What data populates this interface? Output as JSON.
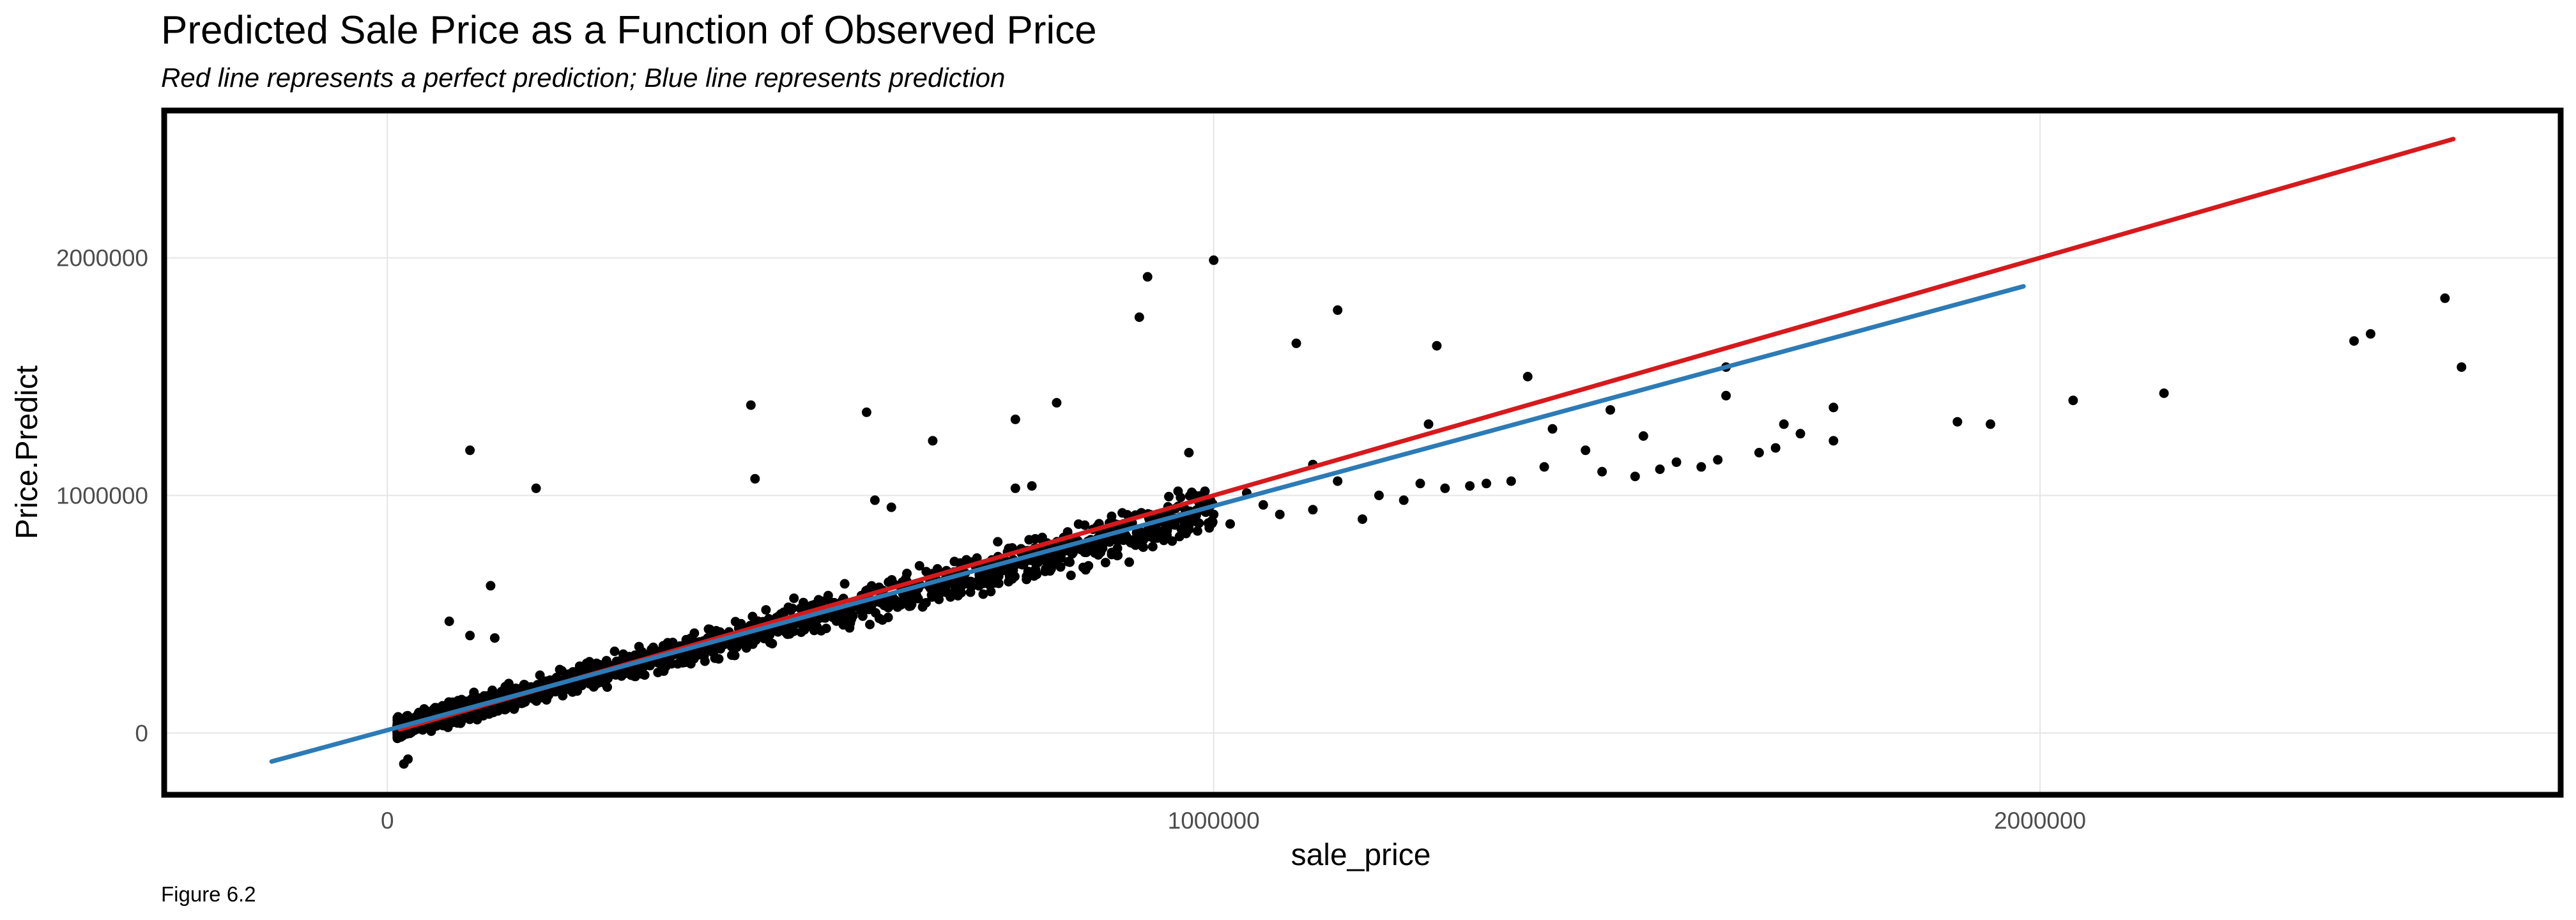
{
  "title": "Predicted Sale Price as a Function of Observed Price",
  "subtitle": "Red line represents a perfect prediction; Blue line represents prediction",
  "caption": "Figure 6.2",
  "colors": {
    "points": "#000000",
    "perfect_line": "#d7191c",
    "prediction_line": "#2c7bb6",
    "grid": "#e5e5e5",
    "panel_border": "#000000"
  },
  "chart_data": {
    "type": "scatter",
    "xlabel": "sale_price",
    "ylabel": "Price.Predict",
    "xlim": [
      -270000,
      2630000
    ],
    "ylim": [
      -260000,
      2620000
    ],
    "x_ticks": [
      0,
      1000000,
      2000000
    ],
    "x_tick_labels": [
      "0",
      "1000000",
      "2000000"
    ],
    "y_ticks": [
      0,
      1000000,
      2000000
    ],
    "y_tick_labels": [
      "0",
      "1000000",
      "2000000"
    ],
    "grid": true,
    "lines": [
      {
        "role": "perfect prediction",
        "color": "red",
        "x": [
          15000,
          2500000
        ],
        "y": [
          15000,
          2500000
        ]
      },
      {
        "role": "prediction",
        "color": "blue",
        "x": [
          -140000,
          1980000
        ],
        "y": [
          -120000,
          1880000
        ]
      }
    ],
    "band_points": {
      "x_range": [
        12000,
        1000000
      ],
      "y_model": "y ≈ 0.93·x + 10000 (dense cluster of several thousand observations)",
      "count": 1800
    },
    "scatter_points": [
      [
        100000,
        1190000
      ],
      [
        180000,
        1030000
      ],
      [
        125000,
        620000
      ],
      [
        75000,
        470000
      ],
      [
        100000,
        410000
      ],
      [
        130000,
        400000
      ],
      [
        20000,
        -130000
      ],
      [
        25000,
        -110000
      ],
      [
        440000,
        1380000
      ],
      [
        445000,
        1070000
      ],
      [
        580000,
        1350000
      ],
      [
        660000,
        1230000
      ],
      [
        760000,
        1320000
      ],
      [
        810000,
        1390000
      ],
      [
        780000,
        1040000
      ],
      [
        760000,
        1030000
      ],
      [
        920000,
        1920000
      ],
      [
        910000,
        1750000
      ],
      [
        1000000,
        1990000
      ],
      [
        970000,
        1180000
      ],
      [
        590000,
        980000
      ],
      [
        610000,
        950000
      ],
      [
        1100000,
        1640000
      ],
      [
        1150000,
        1780000
      ],
      [
        1270000,
        1630000
      ],
      [
        1380000,
        1500000
      ],
      [
        1120000,
        1130000
      ],
      [
        1150000,
        1060000
      ],
      [
        1060000,
        960000
      ],
      [
        1040000,
        1010000
      ],
      [
        1080000,
        920000
      ],
      [
        1120000,
        940000
      ],
      [
        1180000,
        900000
      ],
      [
        1200000,
        1000000
      ],
      [
        1250000,
        1050000
      ],
      [
        1260000,
        1300000
      ],
      [
        1310000,
        1040000
      ],
      [
        1330000,
        1050000
      ],
      [
        1360000,
        1060000
      ],
      [
        1400000,
        1120000
      ],
      [
        1410000,
        1280000
      ],
      [
        1450000,
        1190000
      ],
      [
        1480000,
        1360000
      ],
      [
        1510000,
        1080000
      ],
      [
        1520000,
        1250000
      ],
      [
        1540000,
        1110000
      ],
      [
        1560000,
        1140000
      ],
      [
        1590000,
        1120000
      ],
      [
        1610000,
        1150000
      ],
      [
        1620000,
        1420000
      ],
      [
        1620000,
        1540000
      ],
      [
        1660000,
        1180000
      ],
      [
        1680000,
        1200000
      ],
      [
        1690000,
        1300000
      ],
      [
        1710000,
        1260000
      ],
      [
        1750000,
        1370000
      ],
      [
        1750000,
        1230000
      ],
      [
        1900000,
        1310000
      ],
      [
        1940000,
        1300000
      ],
      [
        2040000,
        1400000
      ],
      [
        2150000,
        1430000
      ],
      [
        2380000,
        1650000
      ],
      [
        2400000,
        1680000
      ],
      [
        2490000,
        1830000
      ],
      [
        2510000,
        1540000
      ],
      [
        1280000,
        1030000
      ],
      [
        1230000,
        980000
      ],
      [
        1470000,
        1100000
      ],
      [
        1020000,
        880000
      ],
      [
        1000000,
        920000
      ],
      [
        950000,
        900000
      ],
      [
        930000,
        860000
      ],
      [
        900000,
        880000
      ]
    ]
  }
}
